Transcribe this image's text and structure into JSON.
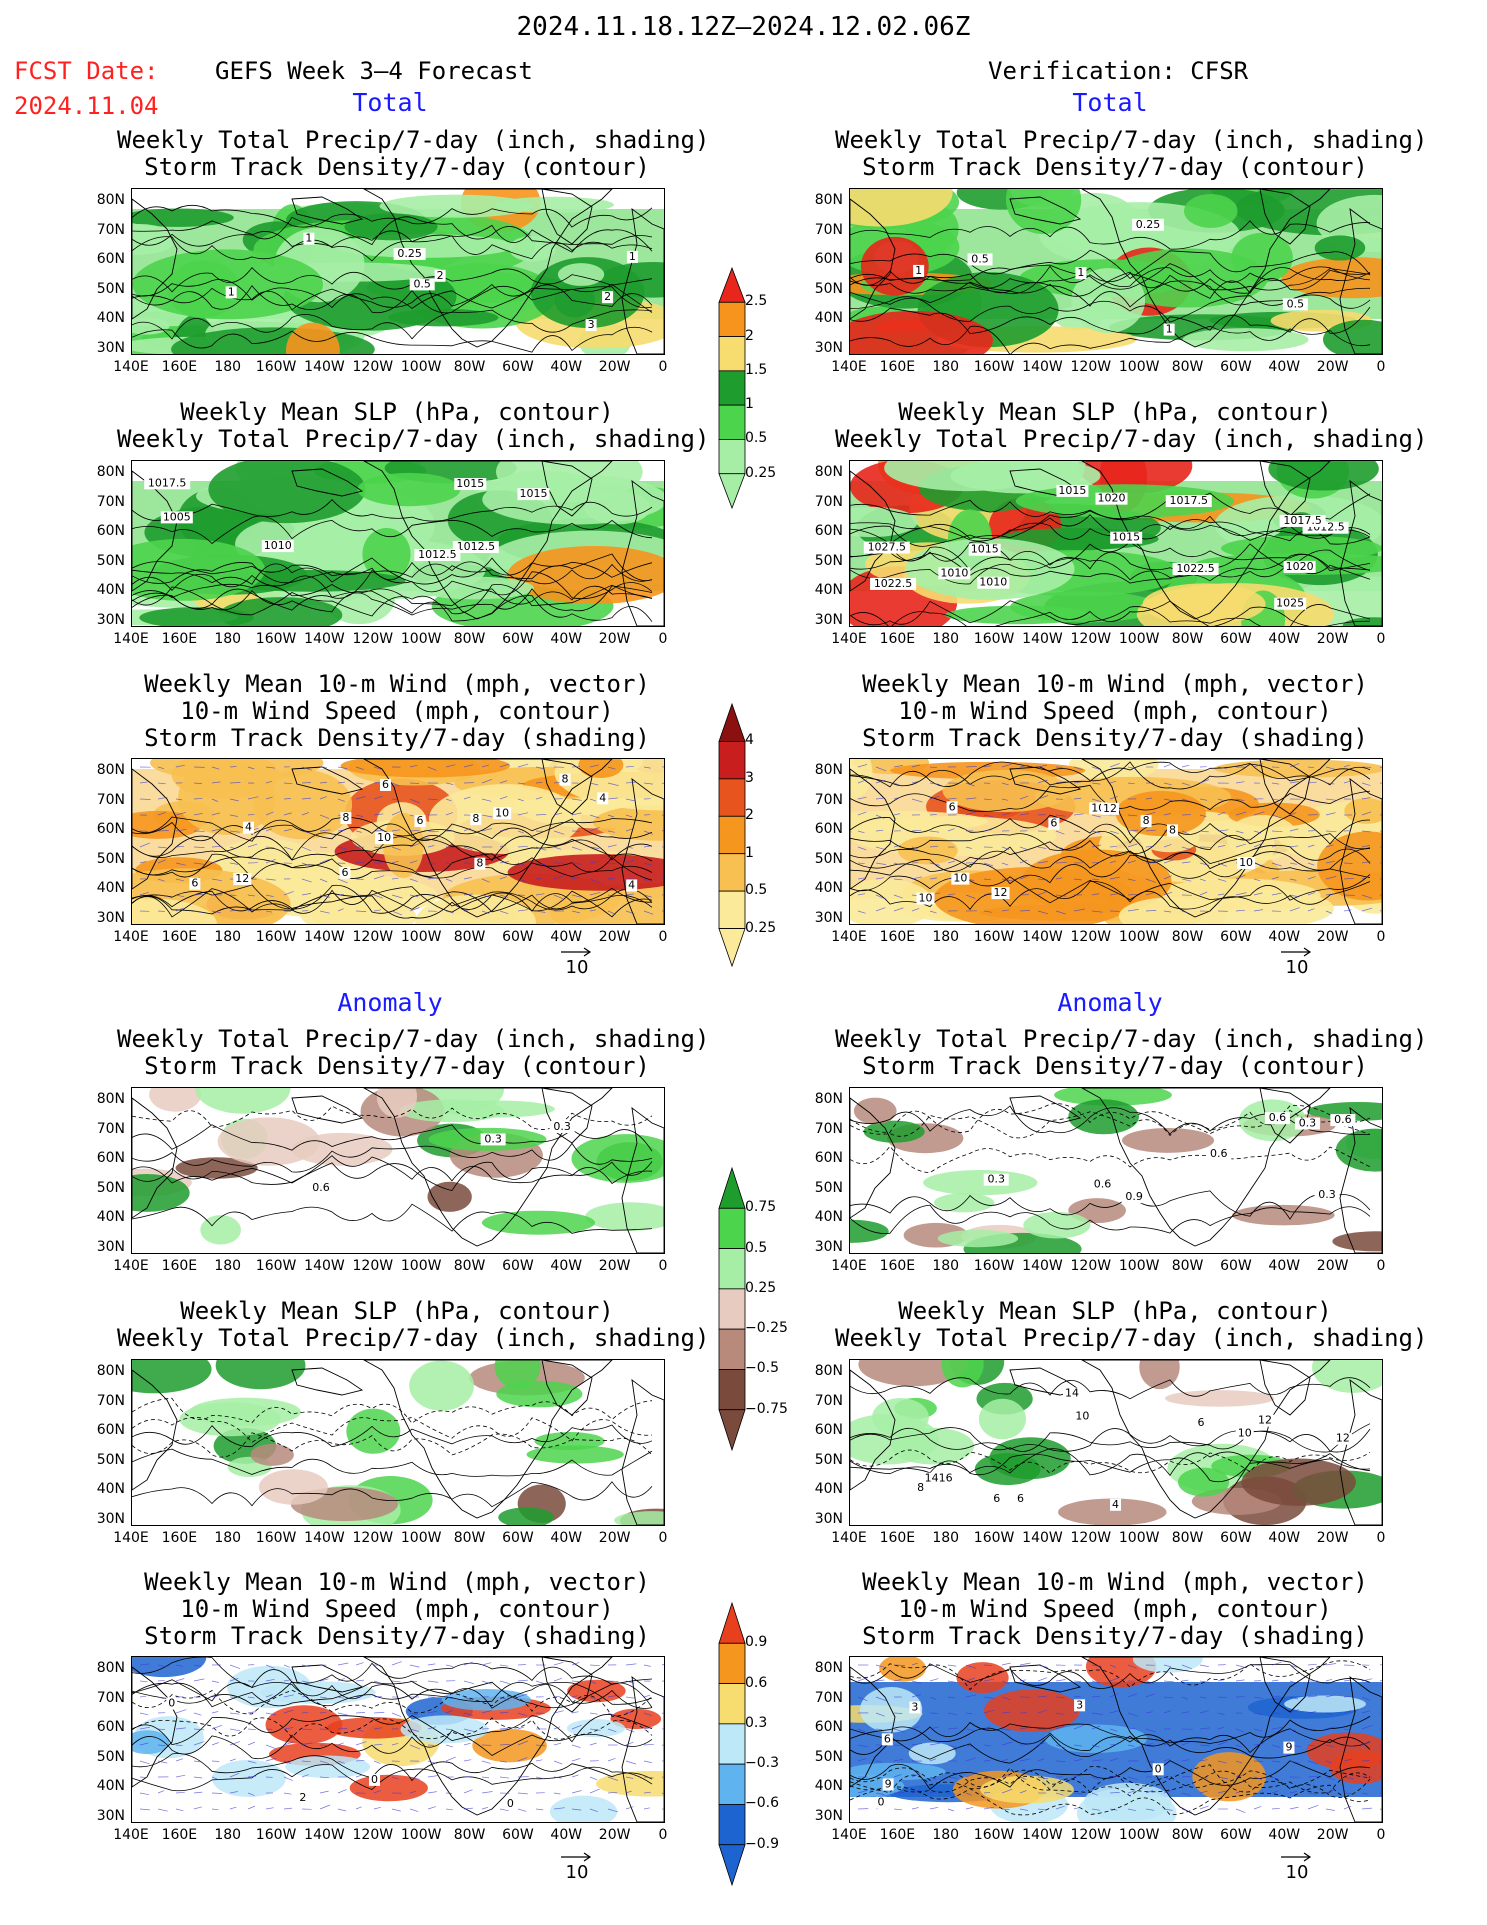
{
  "header": {
    "date_range": "2024.11.18.12Z–2024.12.02.06Z",
    "fcst_label": "FCST Date:",
    "fcst_date": "2024.11.04",
    "model": "GEFS Week 3–4 Forecast",
    "verification": "Verification: CFSR"
  },
  "sections": {
    "total": "Total",
    "anomaly": "Anomaly"
  },
  "titles": {
    "precip_storm": [
      "Weekly Total Precip/7-day (inch, shading)",
      "Storm Track Density/7-day (contour)"
    ],
    "slp_precip": [
      "Weekly Mean SLP (hPa, contour)",
      "Weekly Total Precip/7-day (inch, shading)"
    ],
    "wind": [
      "Weekly Mean 10-m Wind (mph, vector)",
      "10-m Wind Speed (mph, contour)",
      "Storm Track Density/7-day (shading)"
    ]
  },
  "axes": {
    "lat": [
      "80N",
      "70N",
      "60N",
      "50N",
      "40N",
      "30N"
    ],
    "lon": [
      "140E",
      "160E",
      "180",
      "160W",
      "140W",
      "120W",
      "100W",
      "80W",
      "60W",
      "40W",
      "20W",
      "0"
    ]
  },
  "vector_ref": "10",
  "colorbars": {
    "precip_total": {
      "labels": [
        "2.5",
        "2",
        "1.5",
        "1",
        "0.5",
        "0.25"
      ],
      "colors": [
        "#e8261c",
        "#f7941d",
        "#f7dc6f",
        "#1e9c2e",
        "#4cd44c",
        "#a6eea6"
      ]
    },
    "storm_total": {
      "labels": [
        "4",
        "3",
        "2",
        "1",
        "0.5",
        "0.25"
      ],
      "colors": [
        "#8b1010",
        "#c81e1e",
        "#e8541e",
        "#f5961e",
        "#f7c050",
        "#fbea9a"
      ]
    },
    "precip_anom": {
      "labels": [
        "0.75",
        "0.5",
        "0.25",
        "−0.25",
        "−0.5",
        "−0.75"
      ],
      "colors": [
        "#1e9c2e",
        "#4cd44c",
        "#a6eea6",
        "#e8cbc0",
        "#b78a7c",
        "#7a4a3c"
      ]
    },
    "storm_anom": {
      "labels": [
        "0.9",
        "0.6",
        "0.3",
        "−0.3",
        "−0.6",
        "−0.9"
      ],
      "colors": [
        "#e8401e",
        "#f5961e",
        "#f7dc6f",
        "#bde8f7",
        "#5fb4f0",
        "#1e64d0"
      ]
    }
  },
  "panels": {
    "fcst_total_precip": {
      "labels": [
        "1",
        "1",
        "2",
        "3",
        "2",
        "1",
        "0.5",
        "0.25"
      ]
    },
    "fcst_total_slp": {
      "labels": [
        "1012.5",
        "1015",
        "1010",
        "1015",
        "1005",
        "1012.5",
        "1017.5"
      ]
    },
    "fcst_total_wind": {
      "labels": [
        "4",
        "4",
        "6",
        "8",
        "6",
        "12",
        "10",
        "10",
        "8",
        "4",
        "6",
        "8",
        "6",
        "8"
      ]
    },
    "ver_total_precip": {
      "labels": [
        "1",
        "0.5",
        "0.25",
        "1",
        "0.5",
        "1"
      ]
    },
    "ver_total_slp": {
      "labels": [
        "1012.5",
        "1015",
        "1025",
        "1020",
        "1017.5",
        "1022.5",
        "1022.5",
        "1015",
        "1027.5",
        "1020",
        "1010",
        "1010",
        "1015",
        "1017.5"
      ]
    },
    "ver_total_wind": {
      "labels": [
        "10",
        "8",
        "10",
        "6",
        "10",
        "12",
        "12",
        "8",
        "10",
        "6"
      ]
    },
    "fcst_anom_precip": {
      "labels": [
        "0.3",
        "0.6",
        "0.3"
      ]
    },
    "fcst_anom_slp": {
      "labels": []
    },
    "fcst_anom_wind": {
      "labels": [
        "0",
        "0",
        "0",
        "2"
      ]
    },
    "ver_anom_precip": {
      "labels": [
        "0.6",
        "0.3",
        "0.6",
        "0.3",
        "0.9",
        "0.6",
        "0.3",
        "0.6"
      ]
    },
    "ver_anom_slp": {
      "labels": [
        "4",
        "6",
        "10",
        "1416",
        "12",
        "10",
        "14",
        "12",
        "6",
        "6",
        "8"
      ]
    },
    "ver_anom_wind": {
      "labels": [
        "9",
        "0",
        "3",
        "0",
        "3",
        "6",
        "9"
      ]
    }
  }
}
